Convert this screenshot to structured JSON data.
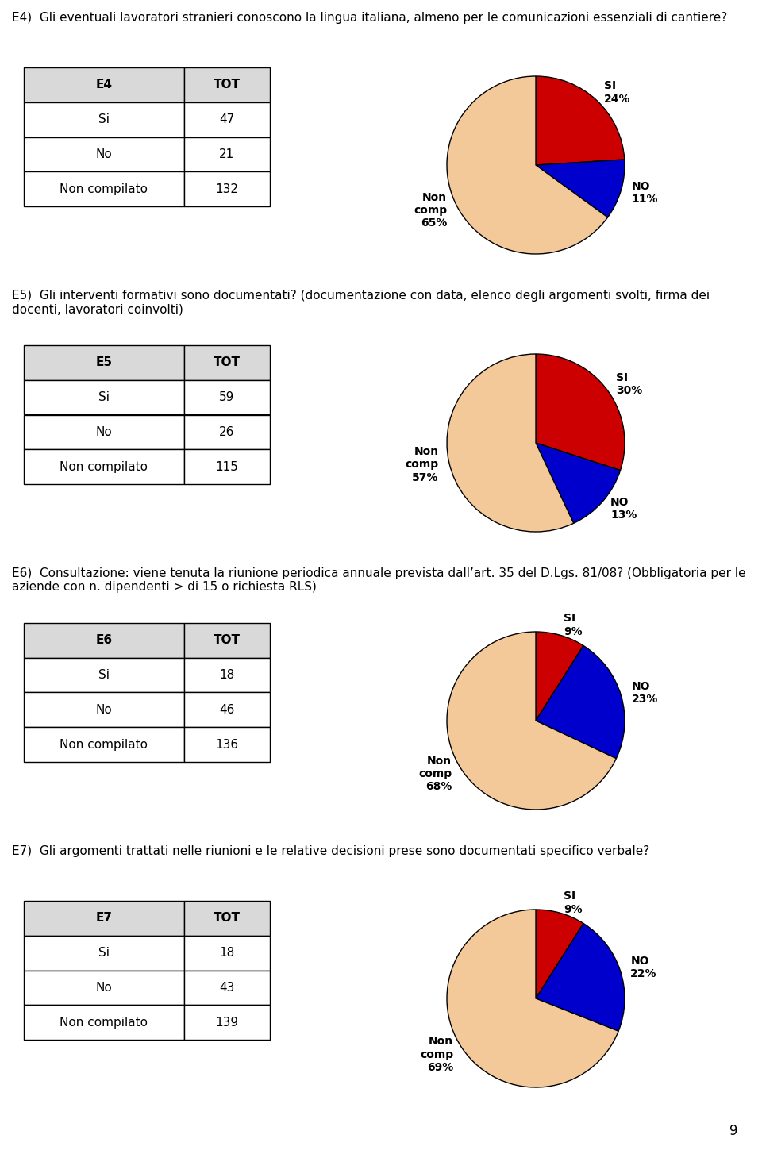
{
  "chart_data": [
    {
      "type": "pie",
      "title": "E4)  Gli eventuali lavoratori stranieri conoscono la lingua italiana, almeno per le comunicazioni essenziali di cantiere?",
      "values": [
        24,
        11,
        65
      ],
      "labels": [
        "SI\n24%",
        "NO\n11%",
        "Non\ncomp\n65%"
      ],
      "colors": [
        "#cc0000",
        "#0000cc",
        "#f4c99a"
      ],
      "table": {
        "header": [
          "E4",
          "TOT"
        ],
        "rows": [
          [
            "Si",
            "47"
          ],
          [
            "No",
            "21"
          ],
          [
            "Non compilato",
            "132"
          ]
        ]
      }
    },
    {
      "type": "pie",
      "title": "E5)  Gli interventi formativi sono documentati? (documentazione con data, elenco degli argomenti svolti, firma dei docenti, lavoratori coinvolti)",
      "values": [
        30,
        13,
        57
      ],
      "labels": [
        "SI\n30%",
        "NO\n13%",
        "Non\ncomp\n57%"
      ],
      "colors": [
        "#cc0000",
        "#0000cc",
        "#f4c99a"
      ],
      "table": {
        "header": [
          "E5",
          "TOT"
        ],
        "rows": [
          [
            "Si",
            "59"
          ],
          [
            "No",
            "26"
          ],
          [
            "Non compilato",
            "115"
          ]
        ]
      }
    },
    {
      "type": "pie",
      "title": "E6)  Consultazione: viene tenuta la riunione periodica annuale prevista dall’art. 35 del D.Lgs. 81/08? (Obbligatoria per le aziende con n. dipendenti > di 15 o richiesta RLS)",
      "values": [
        9,
        23,
        68
      ],
      "labels": [
        "SI\n9%",
        "NO\n23%",
        "Non\ncomp\n68%"
      ],
      "colors": [
        "#cc0000",
        "#0000cc",
        "#f4c99a"
      ],
      "table": {
        "header": [
          "E6",
          "TOT"
        ],
        "rows": [
          [
            "Si",
            "18"
          ],
          [
            "No",
            "46"
          ],
          [
            "Non compilato",
            "136"
          ]
        ]
      }
    },
    {
      "type": "pie",
      "title": "E7)  Gli argomenti trattati nelle riunioni e le relative decisioni prese sono documentati specifico verbale?",
      "values": [
        9,
        22,
        69
      ],
      "labels": [
        "SI\n9%",
        "NO\n22%",
        "Non\ncomp\n69%"
      ],
      "colors": [
        "#cc0000",
        "#0000cc",
        "#f4c99a"
      ],
      "table": {
        "header": [
          "E7",
          "TOT"
        ],
        "rows": [
          [
            "Si",
            "18"
          ],
          [
            "No",
            "43"
          ],
          [
            "Non compilato",
            "139"
          ]
        ]
      }
    }
  ],
  "page_number": "9"
}
